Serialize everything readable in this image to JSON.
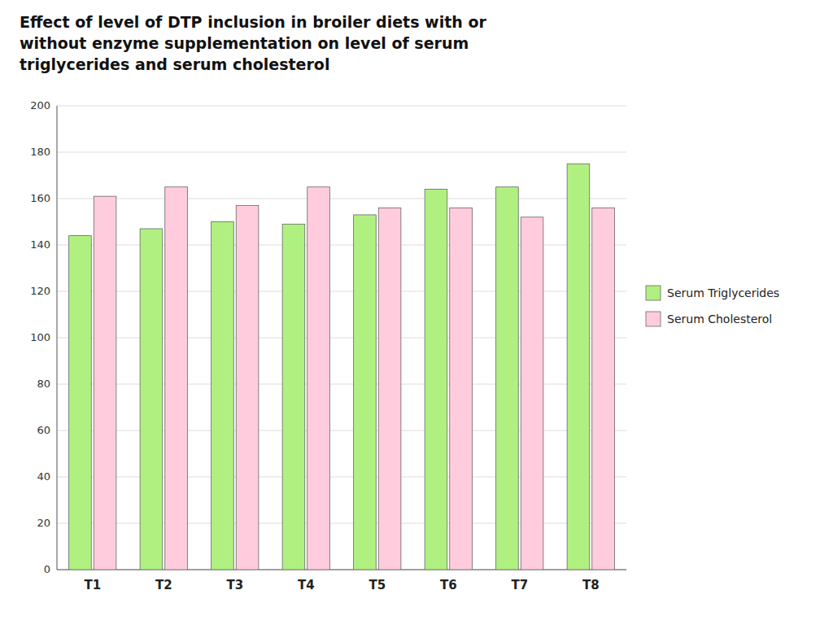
{
  "chart_data": {
    "type": "bar",
    "title": "Effect of level of DTP inclusion in broiler diets with or\nwithout enzyme supplementation on level of serum\ntriglycerides and serum cholesterol",
    "categories": [
      "T1",
      "T2",
      "T3",
      "T4",
      "T5",
      "T6",
      "T7",
      "T8"
    ],
    "series": [
      {
        "name": "Serum Triglycerides",
        "color": "#b0f080",
        "values": [
          144,
          147,
          150,
          149,
          153,
          164,
          165,
          175
        ]
      },
      {
        "name": "Serum Cholesterol",
        "color": "#ffccdd",
        "values": [
          161,
          165,
          157,
          165,
          156,
          156,
          152,
          156
        ]
      }
    ],
    "ylim": [
      0,
      200
    ],
    "yticks": [
      0,
      20,
      40,
      60,
      80,
      100,
      120,
      140,
      160,
      180,
      200
    ],
    "grid": true,
    "legend": "right"
  }
}
